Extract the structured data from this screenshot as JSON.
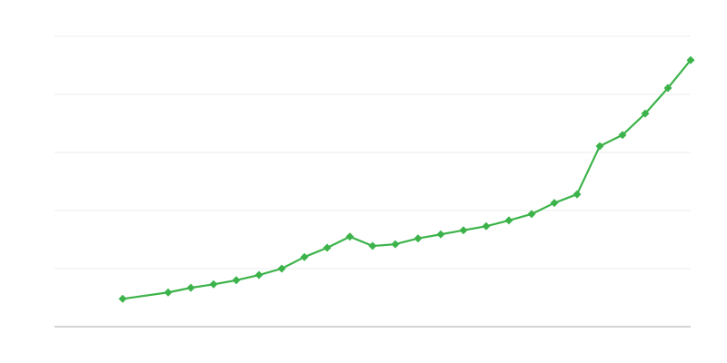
{
  "chart_data": {
    "type": "line",
    "title": "",
    "xlabel": "",
    "ylabel": "",
    "x": [
      3,
      5,
      6,
      7,
      8,
      9,
      10,
      11,
      12,
      13,
      14,
      15,
      16,
      17,
      18,
      19,
      20,
      21,
      22,
      23,
      24,
      25,
      26,
      27,
      28
    ],
    "xlim": [
      0,
      28
    ],
    "ylim": [
      0,
      5
    ],
    "grid": true,
    "legend": "none",
    "series": [
      {
        "color": "#3cb34a",
        "marker": "diamond",
        "values": [
          0.48,
          0.59,
          0.67,
          0.73,
          0.8,
          0.89,
          1.0,
          1.2,
          1.36,
          1.55,
          1.39,
          1.42,
          1.52,
          1.59,
          1.66,
          1.73,
          1.83,
          1.94,
          2.13,
          2.28,
          3.11,
          3.3,
          3.67,
          4.11,
          4.59
        ]
      }
    ],
    "colors": {
      "grid": "#ececec",
      "axis": "#aaaaaa"
    }
  }
}
